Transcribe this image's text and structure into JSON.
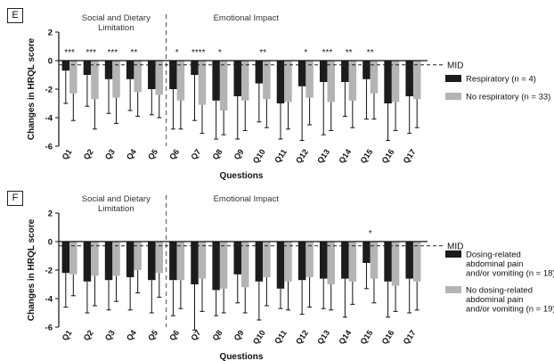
{
  "colors": {
    "series_a": "#1c1c1c",
    "series_b": "#b4b4b4",
    "axis": "#111111",
    "mid_line": "#222222",
    "divider": "#777777"
  },
  "chart_data": [
    {
      "panel_label": "E",
      "type": "bar",
      "ylabel": "Changes in HRQL score",
      "xlabel": "Questions",
      "ylim": [
        -6,
        2
      ],
      "yticks": [
        2,
        0,
        -2,
        -4,
        -6
      ],
      "categories": [
        "Q1",
        "Q2",
        "Q3",
        "Q4",
        "Q5",
        "Q6",
        "Q7",
        "Q8",
        "Q9",
        "Q10",
        "Q11",
        "Q12",
        "Q13",
        "Q14",
        "Q15",
        "Q16",
        "Q17"
      ],
      "mid": {
        "label": "MID",
        "value": -0.3
      },
      "sections": [
        {
          "label": "Social and Dietary Limitation",
          "lines": [
            "Social and Dietary",
            "Limitation"
          ],
          "from": 0,
          "to": 4
        },
        {
          "label": "Emotional Impact",
          "lines": [
            "Emotional Impact"
          ],
          "from": 5,
          "to": 16
        }
      ],
      "series": [
        {
          "name": "Respiratory  (n = 4)",
          "legend_lines": [
            "Respiratory  (n = 4)"
          ],
          "values": [
            -0.7,
            -1.0,
            -1.3,
            -1.3,
            -2.0,
            -2.0,
            -1.0,
            -2.8,
            -2.5,
            -1.6,
            -3.0,
            -1.8,
            -1.5,
            -1.5,
            -1.3,
            -3.0,
            -2.5
          ],
          "errors": [
            2.3,
            2.2,
            2.4,
            2.2,
            1.8,
            2.8,
            3.2,
            2.7,
            3.0,
            2.7,
            2.5,
            3.8,
            3.7,
            2.4,
            2.8,
            2.6,
            2.6
          ]
        },
        {
          "name": "No respiratory (n = 33)",
          "legend_lines": [
            "No respiratory (n = 33)"
          ],
          "values": [
            -2.3,
            -2.7,
            -2.6,
            -2.2,
            -2.4,
            -2.8,
            -3.1,
            -3.5,
            -2.8,
            -2.7,
            -2.9,
            -2.6,
            -2.9,
            -2.8,
            -2.3,
            -2.9,
            -2.7
          ],
          "errors": [
            1.9,
            2.1,
            1.8,
            1.7,
            1.6,
            2.0,
            2.0,
            1.7,
            2.1,
            2.0,
            1.9,
            1.9,
            2.0,
            1.9,
            1.8,
            2.0,
            2.0
          ]
        }
      ],
      "significance": [
        "***",
        "***",
        "***",
        "**",
        "",
        "*",
        "****",
        "*",
        "",
        "**",
        "",
        "*",
        "***",
        "**",
        "**",
        "",
        ""
      ]
    },
    {
      "panel_label": "F",
      "type": "bar",
      "ylabel": "Changes in HRQL score",
      "xlabel": "Questions",
      "ylim": [
        -6,
        2
      ],
      "yticks": [
        2,
        0,
        -2,
        -4,
        -6
      ],
      "categories": [
        "Q1",
        "Q2",
        "Q3",
        "Q4",
        "Q5",
        "Q6",
        "Q7",
        "Q8",
        "Q9",
        "Q10",
        "Q11",
        "Q12",
        "Q13",
        "Q14",
        "Q15",
        "Q16",
        "Q17"
      ],
      "mid": {
        "label": "MID",
        "value": -0.3
      },
      "sections": [
        {
          "label": "Social and Dietary Limitation",
          "lines": [
            "Social and Dietary",
            "Limitation"
          ],
          "from": 0,
          "to": 4
        },
        {
          "label": "Emotional Impact",
          "lines": [
            "Emotional Impact"
          ],
          "from": 5,
          "to": 16
        }
      ],
      "series": [
        {
          "name": "Dosing-related abdominal pain and/or vomiting (n = 18)",
          "legend_lines": [
            "Dosing-related",
            "abdominal pain",
            "and/or vomiting (n = 18)"
          ],
          "values": [
            -2.2,
            -2.8,
            -2.7,
            -2.5,
            -2.7,
            -2.7,
            -3.0,
            -3.4,
            -2.3,
            -2.8,
            -3.3,
            -2.7,
            -2.6,
            -2.6,
            -1.5,
            -2.8,
            -2.6
          ],
          "errors": [
            2.4,
            2.2,
            2.1,
            2.3,
            2.3,
            2.5,
            3.2,
            1.8,
            2.0,
            2.7,
            1.4,
            2.4,
            2.1,
            2.7,
            1.8,
            2.5,
            2.4
          ]
        },
        {
          "name": "No dosing-related abdominal pain and/or vomiting (n = 19)",
          "legend_lines": [
            "No dosing-related",
            "abdominal pain",
            "and/or vomiting (n = 19)"
          ],
          "values": [
            -2.3,
            -2.4,
            -2.4,
            -2.0,
            -2.2,
            -2.7,
            -2.6,
            -3.3,
            -3.2,
            -2.5,
            -2.8,
            -2.5,
            -3.0,
            -2.8,
            -2.6,
            -3.1,
            -2.8
          ],
          "errors": [
            1.5,
            2.1,
            1.8,
            1.6,
            1.7,
            2.0,
            2.3,
            1.7,
            1.8,
            2.0,
            2.0,
            2.1,
            1.8,
            1.6,
            1.7,
            1.8,
            2.0
          ]
        }
      ],
      "significance": [
        "",
        "",
        "",
        "",
        "",
        "",
        "",
        "",
        "",
        "",
        "",
        "",
        "",
        "",
        "*",
        "",
        ""
      ]
    }
  ]
}
